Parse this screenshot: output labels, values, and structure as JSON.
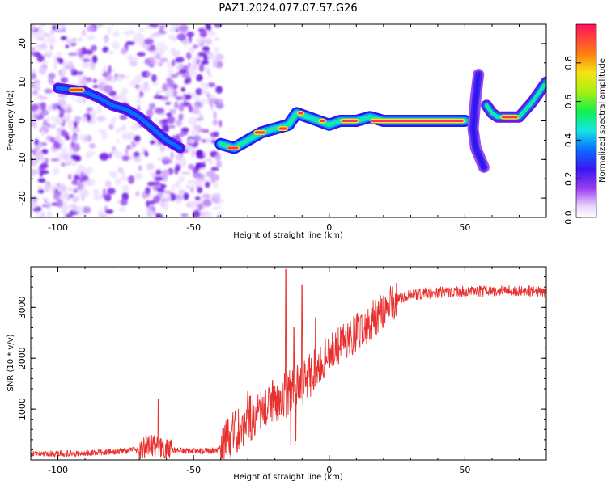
{
  "title": "PAZ1.2024.077.07.57.G26",
  "chart_data": [
    {
      "type": "heatmap",
      "xlabel": "Height of straight line (km)",
      "ylabel": "Frequency (Hz)",
      "xlim": [
        -110,
        80
      ],
      "ylim": [
        -25,
        25
      ],
      "xticks": [
        -100,
        -50,
        0,
        50
      ],
      "yticks": [
        -20,
        -10,
        0,
        10,
        20
      ],
      "colorbar": {
        "label": "Normalized spectral amplitude",
        "range": [
          0,
          1
        ],
        "ticks": [
          "0.0",
          "0.2",
          "0.4",
          "0.6",
          "0.8"
        ]
      },
      "ridge": [
        {
          "x": -100,
          "y": 8.5
        },
        {
          "x": -95,
          "y": 8
        },
        {
          "x": -90,
          "y": 7.5
        },
        {
          "x": -85,
          "y": 6
        },
        {
          "x": -80,
          "y": 4
        },
        {
          "x": -75,
          "y": 3
        },
        {
          "x": -70,
          "y": 1
        },
        {
          "x": -65,
          "y": -2
        },
        {
          "x": -60,
          "y": -5
        },
        {
          "x": -55,
          "y": -7
        },
        {
          "x": -40,
          "y": -6
        },
        {
          "x": -35,
          "y": -7
        },
        {
          "x": -30,
          "y": -5
        },
        {
          "x": -25,
          "y": -3
        },
        {
          "x": -20,
          "y": -2
        },
        {
          "x": -15,
          "y": -1
        },
        {
          "x": -12,
          "y": 2
        },
        {
          "x": -8,
          "y": 1
        },
        {
          "x": -4,
          "y": 0
        },
        {
          "x": 0,
          "y": -1
        },
        {
          "x": 4,
          "y": 0
        },
        {
          "x": 10,
          "y": 0
        },
        {
          "x": 15,
          "y": 1
        },
        {
          "x": 20,
          "y": 0
        },
        {
          "x": 50,
          "y": 0
        },
        {
          "x": 54,
          "y": -7
        },
        {
          "x": 57,
          "y": -12
        },
        {
          "x": 55,
          "y": 12
        },
        {
          "x": 58,
          "y": 4
        },
        {
          "x": 62,
          "y": 1
        },
        {
          "x": 70,
          "y": 1
        },
        {
          "x": 75,
          "y": 5
        },
        {
          "x": 80,
          "y": 10
        }
      ]
    },
    {
      "type": "line",
      "xlabel": "Height of straight line (km)",
      "ylabel": "SNR (10 * v/v)",
      "xlim": [
        -110,
        80
      ],
      "ylim": [
        0,
        3800
      ],
      "xticks": [
        -100,
        -50,
        0,
        50
      ],
      "yticks": [
        1000,
        2000,
        3000
      ],
      "color": "#e8302e",
      "trend": [
        {
          "x": -110,
          "y": 120
        },
        {
          "x": -90,
          "y": 130
        },
        {
          "x": -80,
          "y": 160
        },
        {
          "x": -70,
          "y": 200
        },
        {
          "x": -65,
          "y": 300
        },
        {
          "x": -60,
          "y": 200
        },
        {
          "x": -50,
          "y": 170
        },
        {
          "x": -42,
          "y": 180
        },
        {
          "x": -38,
          "y": 350
        },
        {
          "x": -32,
          "y": 700
        },
        {
          "x": -25,
          "y": 1000
        },
        {
          "x": -20,
          "y": 1200
        },
        {
          "x": -15,
          "y": 1300
        },
        {
          "x": -10,
          "y": 1500
        },
        {
          "x": -5,
          "y": 1800
        },
        {
          "x": 0,
          "y": 2100
        },
        {
          "x": 5,
          "y": 2300
        },
        {
          "x": 10,
          "y": 2500
        },
        {
          "x": 15,
          "y": 2700
        },
        {
          "x": 20,
          "y": 2950
        },
        {
          "x": 25,
          "y": 3150
        },
        {
          "x": 30,
          "y": 3250
        },
        {
          "x": 40,
          "y": 3300
        },
        {
          "x": 60,
          "y": 3320
        },
        {
          "x": 80,
          "y": 3320
        }
      ],
      "spikes": [
        {
          "x": -63,
          "y": 1200
        },
        {
          "x": -30,
          "y": 1350
        },
        {
          "x": -16,
          "y": 3750
        },
        {
          "x": -10,
          "y": 3450
        },
        {
          "x": -13,
          "y": 2600
        },
        {
          "x": -5,
          "y": 2800
        }
      ]
    }
  ]
}
